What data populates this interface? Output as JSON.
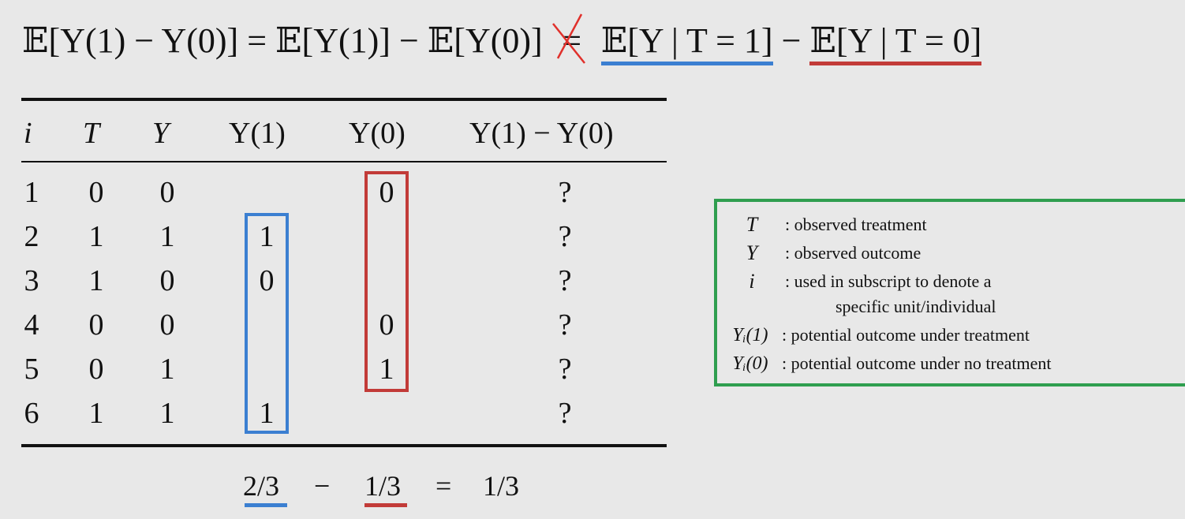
{
  "equation": {
    "lhs": "𝔼[Y(1) − Y(0)]",
    "eq": "=",
    "mid": "𝔼[Y(1)] − 𝔼[Y(0)]",
    "neq": "=",
    "term_treated": "𝔼[Y | T = 1]",
    "minus": "−",
    "term_control": "𝔼[Y | T = 0]"
  },
  "table": {
    "headers": [
      "i",
      "T",
      "Y",
      "Y(1)",
      "Y(0)",
      "Y(1) − Y(0)"
    ],
    "rows": [
      {
        "i": "1",
        "T": "0",
        "Y": "0",
        "y1": "",
        "y0": "0",
        "diff": "?"
      },
      {
        "i": "2",
        "T": "1",
        "Y": "1",
        "y1": "1",
        "y0": "",
        "diff": "?"
      },
      {
        "i": "3",
        "T": "1",
        "Y": "0",
        "y1": "0",
        "y0": "",
        "diff": "?"
      },
      {
        "i": "4",
        "T": "0",
        "Y": "0",
        "y1": "",
        "y0": "0",
        "diff": "?"
      },
      {
        "i": "5",
        "T": "0",
        "Y": "1",
        "y1": "",
        "y0": "1",
        "diff": "?"
      },
      {
        "i": "6",
        "T": "1",
        "Y": "1",
        "y1": "1",
        "y0": "",
        "diff": "?"
      }
    ]
  },
  "summary": {
    "treated_mean": "2/3",
    "minus": "−",
    "control_mean": "1/3",
    "eq": "=",
    "result": "1/3"
  },
  "legend": {
    "items": [
      {
        "symbol": "T",
        "text": ": observed treatment"
      },
      {
        "symbol": "Y",
        "text": ": observed outcome"
      },
      {
        "symbol": "i",
        "text": ": used in subscript to denote a"
      },
      {
        "symbol": "",
        "text": "specific unit/individual"
      },
      {
        "symbol": "Yᵢ(1)",
        "text": ": potential outcome under treatment"
      },
      {
        "symbol": "Yᵢ(0)",
        "text": ": potential outcome under no treatment"
      }
    ]
  },
  "colors": {
    "treated": "#3b7fd1",
    "control": "#c23b38",
    "legend_border": "#2f9e4f",
    "cross_out": "#e0302b",
    "background": "#e8e8e8"
  }
}
